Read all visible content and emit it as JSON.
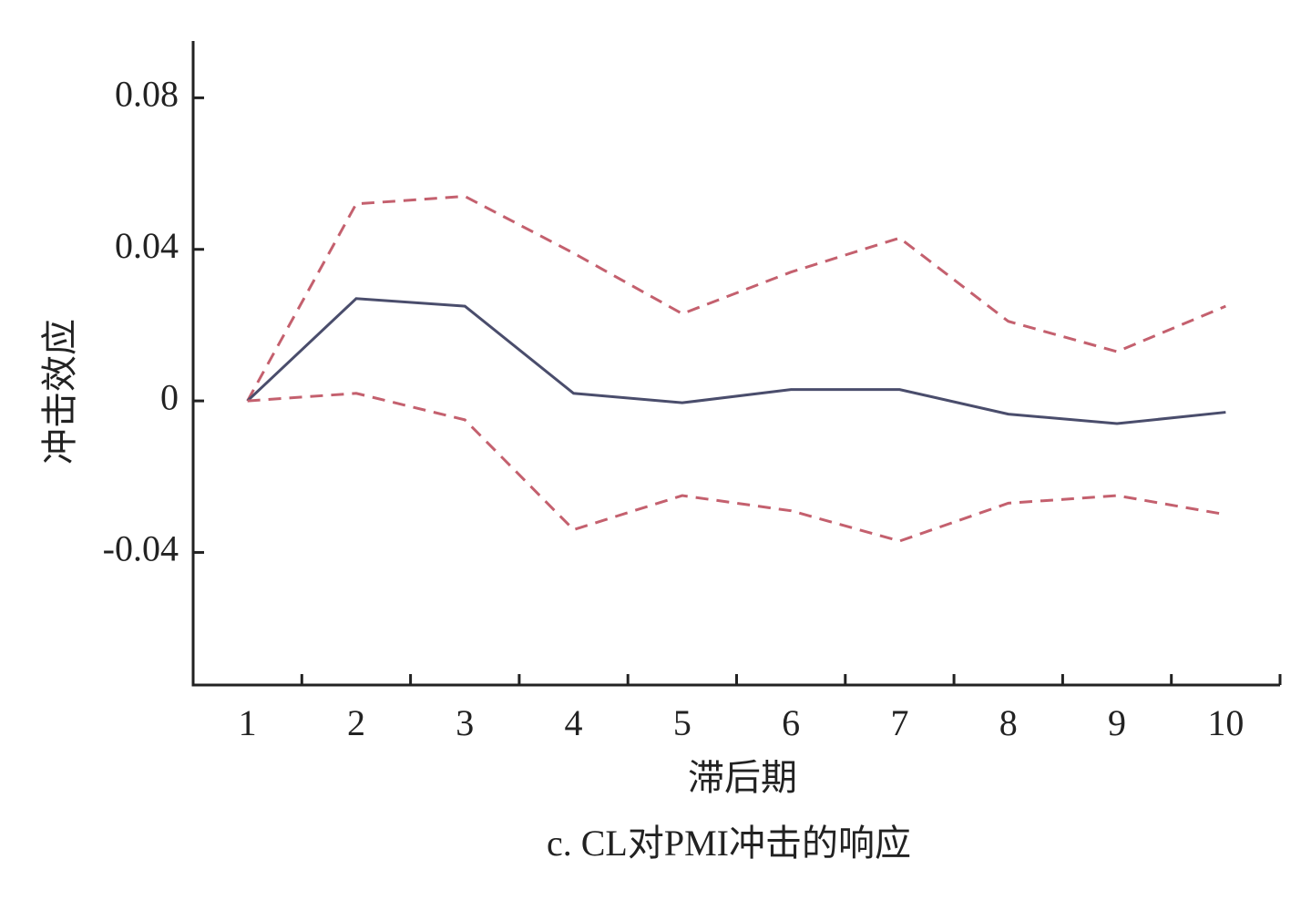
{
  "chart_data": {
    "type": "line",
    "y_label": "冲击效应",
    "x_label": "滞后期",
    "caption": "c. CL对PMI冲击的响应",
    "categories": [
      "1",
      "2",
      "3",
      "4",
      "5",
      "6",
      "7",
      "8",
      "9",
      "10"
    ],
    "series": [
      {
        "color": "#c4606e",
        "dash": true,
        "values": [
          0,
          0.052,
          0.054,
          0.039,
          0.023,
          0.034,
          0.043,
          0.021,
          0.013,
          0.025
        ]
      },
      {
        "color": "#4a4d6c",
        "dash": false,
        "values": [
          0,
          0.027,
          0.025,
          0.002,
          -0.0005,
          0.003,
          0.003,
          -0.0035,
          -0.006,
          -0.003
        ]
      },
      {
        "color": "#c4606e",
        "dash": true,
        "values": [
          0,
          0.002,
          -0.005,
          -0.034,
          -0.025,
          -0.029,
          -0.037,
          -0.027,
          -0.025,
          -0.03
        ]
      }
    ],
    "ylim": [
      -0.075,
      0.095
    ],
    "yticks": [
      0.08,
      0.04,
      0,
      -0.04
    ],
    "grid": false
  }
}
